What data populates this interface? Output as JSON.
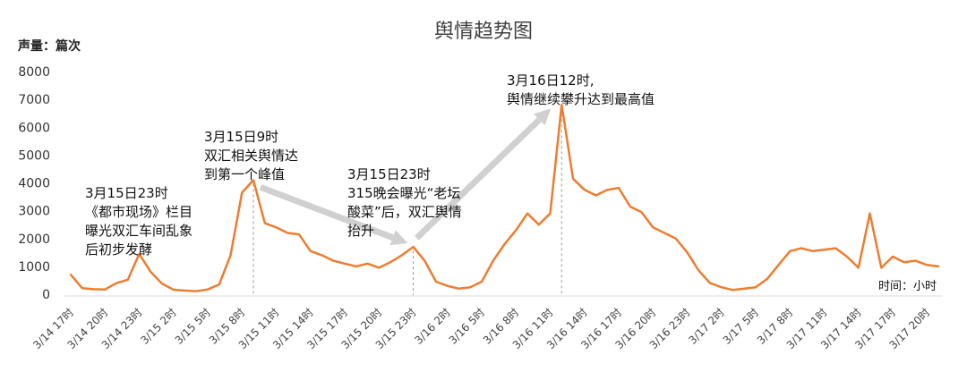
{
  "chart_data": {
    "type": "line",
    "title": "舆情趋势图",
    "ylabel": "声量：篇次",
    "xlabel": "时间：小时",
    "ylim": [
      0,
      8000
    ],
    "yticks": [
      "0",
      "1000",
      "2000",
      "3000",
      "4000",
      "5000",
      "6000",
      "7000",
      "8000"
    ],
    "grid": false,
    "line_color": "#ED7D31",
    "arrow_color": "#D0D0D0",
    "x_tick_labels": [
      "3/14 17时",
      "3/14 20时",
      "3/14 23时",
      "3/15 2时",
      "3/15 5时",
      "3/15 8时",
      "3/15 11时",
      "3/15 14时",
      "3/15 17时",
      "3/15 20时",
      "3/15 23时",
      "3/16 2时",
      "3/16 5时",
      "3/16 8时",
      "3/16 11时",
      "3/16 14时",
      "3/16 17时",
      "3/16 20时",
      "3/16 23时",
      "3/17 2时",
      "3/17 5时",
      "3/17 8时",
      "3/17 11时",
      "3/17 14时",
      "3/17 17时",
      "3/17 20时"
    ],
    "values": [
      700,
      220,
      180,
      170,
      400,
      520,
      1450,
      800,
      380,
      160,
      130,
      110,
      170,
      350,
      1400,
      3650,
      4100,
      2550,
      2400,
      2200,
      2150,
      1550,
      1400,
      1200,
      1100,
      1000,
      1100,
      950,
      1150,
      1400,
      1700,
      1200,
      450,
      300,
      200,
      250,
      450,
      1200,
      1800,
      2300,
      2900,
      2500,
      2900,
      6800,
      4150,
      3750,
      3550,
      3750,
      3820,
      3150,
      2950,
      2400,
      2200,
      2000,
      1500,
      850,
      400,
      250,
      150,
      200,
      250,
      550,
      1050,
      1550,
      1650,
      1550,
      1600,
      1650,
      1350,
      950,
      2900,
      950,
      1350,
      1150,
      1200,
      1050,
      1000
    ],
    "annotations": [
      {
        "lines": [
          "3月15日23时",
          "《都市现场》栏目",
          "曝光双汇车间乱象",
          "后初步发酵"
        ]
      },
      {
        "lines": [
          "3月15日9时",
          "双汇相关舆情达",
          "到第一个峰值"
        ]
      },
      {
        "lines": [
          "3月15日23时",
          "315晚会曝光“老坛",
          "酸菜”后，双汇舆情",
          "抬升"
        ]
      },
      {
        "lines": [
          "3月16日12时,",
          "舆情继续攀升达到最高值"
        ]
      }
    ]
  }
}
